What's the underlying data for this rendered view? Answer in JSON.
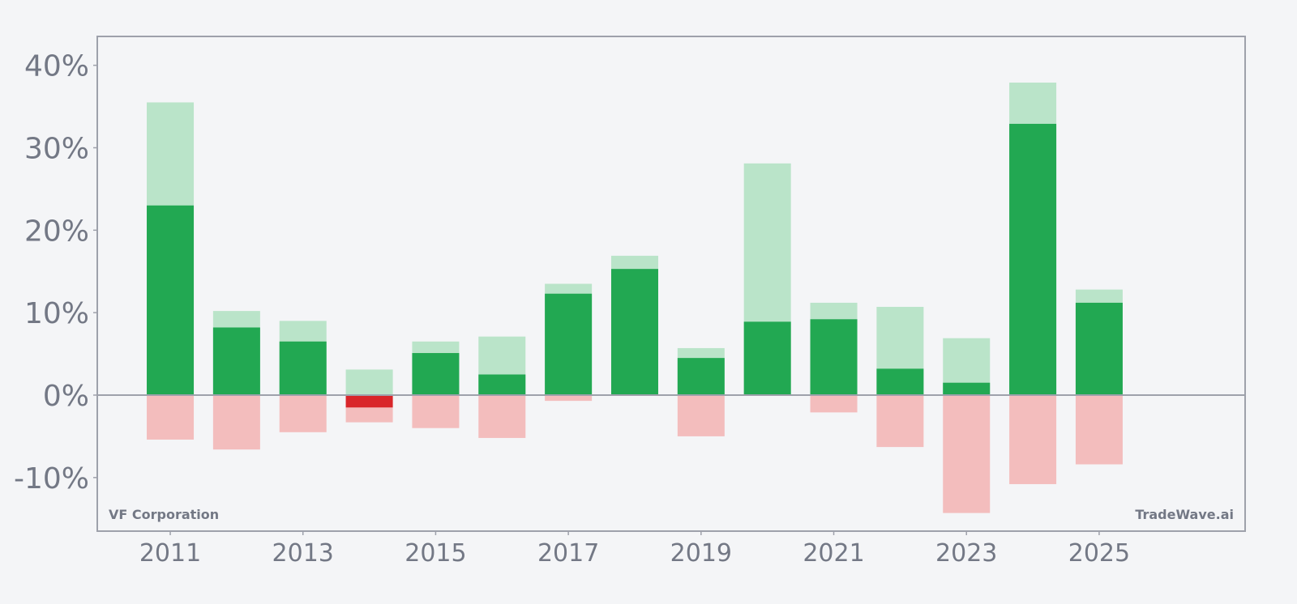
{
  "chart_data": {
    "type": "bar",
    "company": "VF Corporation",
    "watermark": "TradeWave.ai",
    "years": [
      2011,
      2012,
      2013,
      2014,
      2015,
      2016,
      2017,
      2018,
      2019,
      2020,
      2021,
      2022,
      2023,
      2024,
      2025
    ],
    "series": [
      {
        "values": [
          23.0,
          8.2,
          6.5,
          -1.5,
          5.1,
          2.5,
          12.3,
          15.3,
          4.5,
          8.9,
          9.2,
          3.2,
          1.5,
          32.9,
          11.2
        ]
      },
      {
        "values": [
          35.5,
          10.2,
          9.0,
          3.1,
          6.5,
          7.1,
          13.5,
          16.9,
          5.7,
          28.1,
          11.2,
          10.7,
          6.9,
          37.9,
          12.8
        ]
      },
      {
        "values": [
          -5.4,
          -6.6,
          -4.5,
          -3.3,
          -4.0,
          -5.2,
          -0.7,
          0.0,
          -5.0,
          -0.1,
          -2.1,
          -6.3,
          -14.3,
          -10.8,
          -8.4
        ]
      }
    ],
    "colors": {
      "positive": "#22a852",
      "negative": "#d9262a",
      "high_band": "#bae4c9",
      "low_band": "#f3bdbd",
      "axis": "#9ea1ab",
      "text": "#737885",
      "background": "#f4f5f7"
    },
    "ylim": [
      -16.5,
      43.5
    ],
    "xlim": [
      2009.9,
      2027.2
    ],
    "yticks": [
      40,
      30,
      20,
      10,
      0,
      -10
    ],
    "ytick_labels": [
      "40%",
      "30%",
      "20%",
      "10%",
      "0%",
      "-10%"
    ],
    "xticks": [
      2011,
      2013,
      2015,
      2017,
      2019,
      2021,
      2023,
      2025
    ],
    "xtick_labels": [
      "2011",
      "2013",
      "2015",
      "2017",
      "2019",
      "2021",
      "2023",
      "2025"
    ]
  }
}
